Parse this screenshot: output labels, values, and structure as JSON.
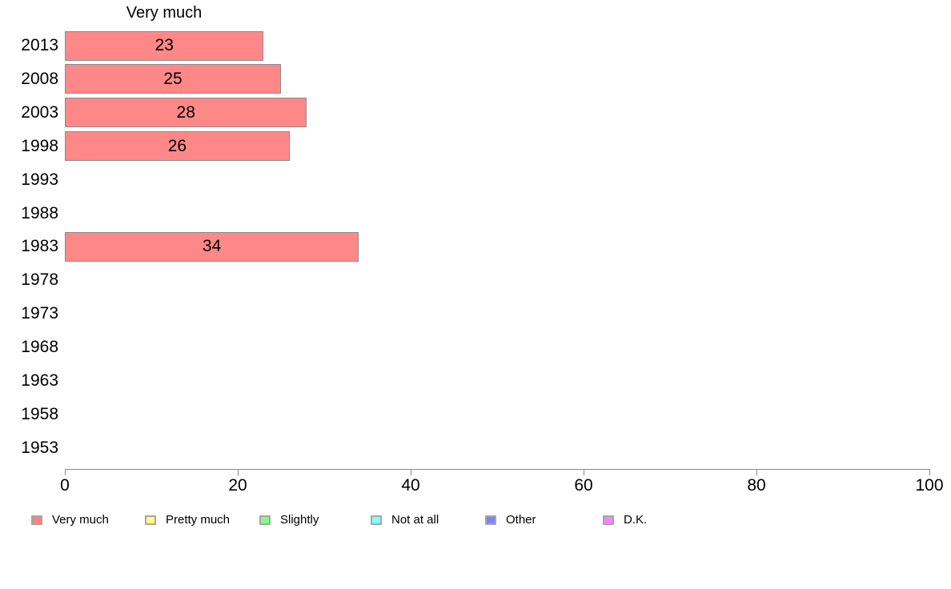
{
  "chart_data": {
    "type": "bar",
    "orientation": "horizontal",
    "title": "Very much",
    "categories": [
      "2013",
      "2008",
      "2003",
      "1998",
      "1993",
      "1988",
      "1983",
      "1978",
      "1973",
      "1968",
      "1963",
      "1958",
      "1953"
    ],
    "values": [
      23,
      25,
      28,
      26,
      null,
      null,
      34,
      null,
      null,
      null,
      null,
      null,
      null
    ],
    "xlabel": "",
    "ylabel": "",
    "xlim": [
      0,
      100
    ],
    "x_ticks": [
      0,
      20,
      40,
      60,
      80,
      100
    ],
    "grid": false,
    "bar_color": "#FE8888",
    "bar_border_color": "#8C8C8C",
    "value_labels_shown": true,
    "legend_position": "bottom",
    "legend": [
      {
        "label": "Very much",
        "color": "#FF8080"
      },
      {
        "label": "Pretty much",
        "color": "#FFFF80"
      },
      {
        "label": "Slightly",
        "color": "#80FF80"
      },
      {
        "label": "Not at all",
        "color": "#80FFFF"
      },
      {
        "label": "Other",
        "color": "#8080FF"
      },
      {
        "label": "D.K.",
        "color": "#FF80FF"
      }
    ]
  }
}
